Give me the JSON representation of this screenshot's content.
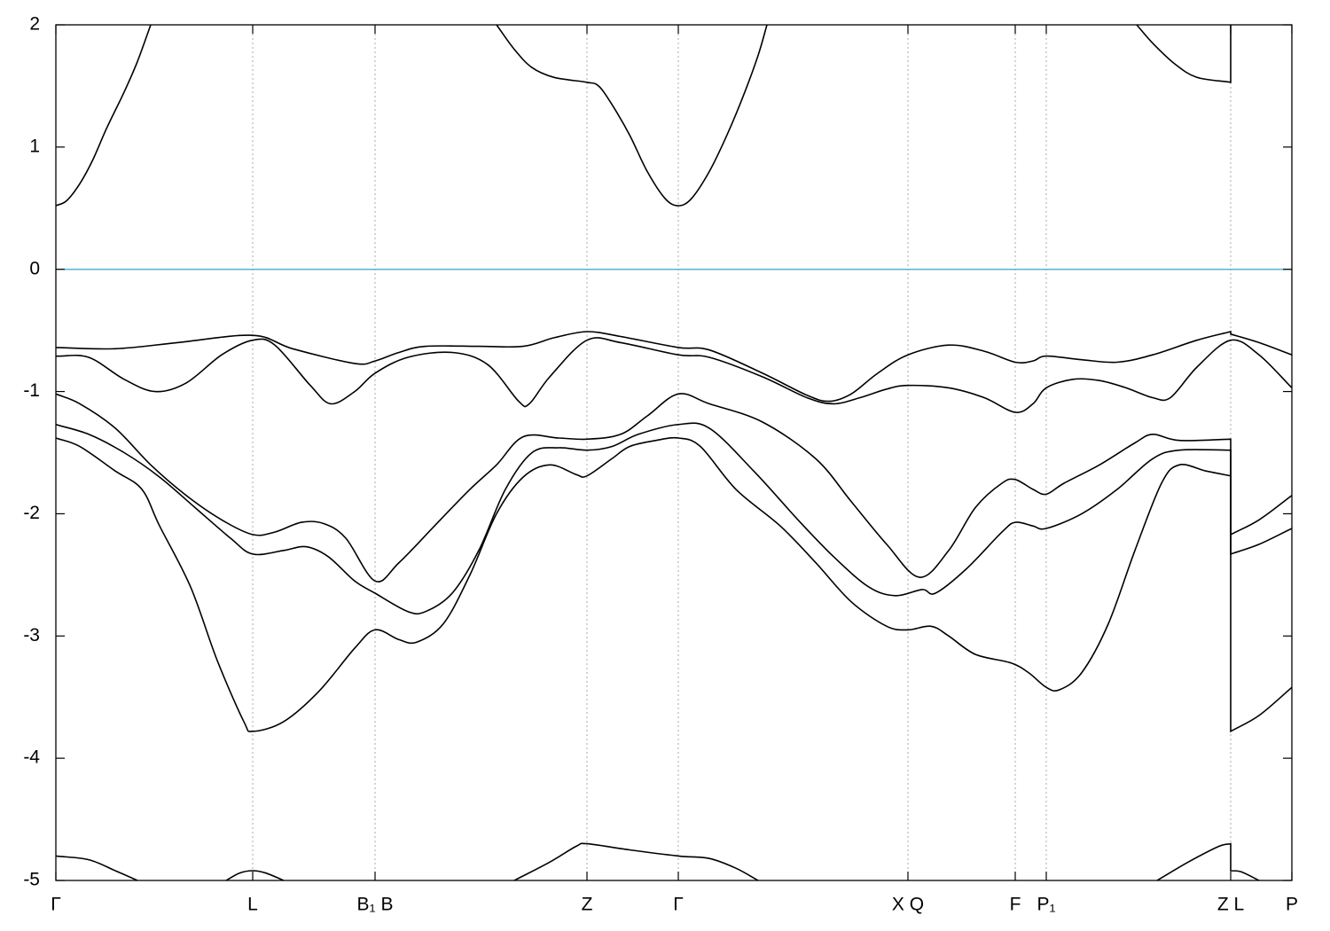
{
  "chart_data": {
    "type": "line",
    "xlim": [
      0,
      1394
    ],
    "ylim": [
      -5,
      2
    ],
    "yticks": [
      2,
      1,
      0,
      -1,
      -2,
      -3,
      -4,
      -5
    ],
    "xticks": [
      {
        "value": 0,
        "label": "Γ"
      },
      {
        "value": 222,
        "label": "L"
      },
      {
        "value": 360,
        "label": "B₁ B"
      },
      {
        "value": 599,
        "label": "Z"
      },
      {
        "value": 702,
        "label": "Γ"
      },
      {
        "value": 961,
        "label": "X Q"
      },
      {
        "value": 1082,
        "label": "F"
      },
      {
        "value": 1117,
        "label": "P₁"
      },
      {
        "value": 1325,
        "label": "Z L"
      },
      {
        "value": 1394,
        "label": "P"
      }
    ],
    "xgrid": true,
    "hlines": [
      {
        "value": 0,
        "color": "#5ab4d0"
      }
    ],
    "series": [
      {
        "color": "#000000",
        "x": [
          0,
          12,
          27,
          42,
          57,
          77,
          92,
          107,
          300,
          497,
          517,
          537,
          562,
          599,
          612,
          627,
          647,
          667,
          687,
          702,
          717,
          737,
          757,
          777,
          792,
          802,
          1000,
          1219,
          1237,
          1262,
          1287,
          1325,
          1325
        ],
        "values": [
          0.52,
          0.56,
          0.7,
          0.9,
          1.15,
          1.45,
          1.7,
          2.0,
          null,
          2.0,
          1.8,
          1.65,
          1.57,
          1.53,
          1.5,
          1.35,
          1.1,
          0.8,
          0.58,
          0.52,
          0.58,
          0.8,
          1.1,
          1.45,
          1.75,
          2.0,
          null,
          2.0,
          1.85,
          1.68,
          1.57,
          1.53,
          2.0
        ]
      },
      {
        "color": "#000000",
        "x": [
          0,
          67,
          137,
          222,
          267,
          337,
          360,
          387,
          417,
          477,
          527,
          562,
          599,
          637,
          702,
          737,
          797,
          847,
          872,
          897,
          927,
          961,
          1007,
          1047,
          1082,
          1102,
          1117,
          1157,
          1197,
          1237,
          1287,
          1325,
          1325,
          1357,
          1394
        ],
        "values": [
          -0.64,
          -0.65,
          -0.6,
          -0.54,
          -0.65,
          -0.77,
          -0.75,
          -0.68,
          -0.63,
          -0.63,
          -0.63,
          -0.56,
          -0.51,
          -0.55,
          -0.64,
          -0.66,
          -0.85,
          -1.03,
          -1.08,
          -1.02,
          -0.85,
          -0.7,
          -0.62,
          -0.67,
          -0.76,
          -0.75,
          -0.71,
          -0.74,
          -0.76,
          -0.7,
          -0.58,
          -0.51,
          -0.53,
          -0.6,
          -0.7
        ]
      },
      {
        "color": "#000000",
        "x": [
          0,
          37,
          77,
          112,
          147,
          187,
          222,
          247,
          287,
          310,
          337,
          360,
          397,
          447,
          487,
          522,
          534,
          557,
          599,
          637,
          702,
          737,
          797,
          847,
          877,
          907,
          937,
          961,
          1007,
          1047,
          1082,
          1102,
          1117,
          1147,
          1177,
          1207,
          1237,
          1257,
          1287,
          1325,
          1357,
          1394
        ],
        "values": [
          -0.71,
          -0.72,
          -0.9,
          -1.0,
          -0.93,
          -0.7,
          -0.58,
          -0.62,
          -0.95,
          -1.1,
          -1.0,
          -0.85,
          -0.72,
          -0.68,
          -0.78,
          -1.08,
          -1.1,
          -0.88,
          -0.58,
          -0.6,
          -0.7,
          -0.72,
          -0.88,
          -1.05,
          -1.1,
          -1.05,
          -0.98,
          -0.95,
          -0.97,
          -1.05,
          -1.17,
          -1.1,
          -0.97,
          -0.9,
          -0.91,
          -0.97,
          -1.05,
          -1.05,
          -0.8,
          -0.58,
          -0.7,
          -0.97
        ]
      },
      {
        "color": "#000000",
        "x": [
          0,
          27,
          67,
          107,
          147,
          187,
          222,
          247,
          277,
          302,
          327,
          360,
          387,
          427,
          467,
          497,
          527,
          567,
          599,
          637,
          667,
          702,
          737,
          797,
          857,
          897,
          937,
          974,
          1007,
          1037,
          1067,
          1082,
          1102,
          1117,
          1137,
          1177,
          1217,
          1237,
          1267,
          1325,
          1325,
          1357,
          1394
        ],
        "values": [
          -1.02,
          -1.1,
          -1.3,
          -1.6,
          -1.85,
          -2.05,
          -2.17,
          -2.15,
          -2.07,
          -2.08,
          -2.2,
          -2.55,
          -2.4,
          -2.1,
          -1.8,
          -1.6,
          -1.37,
          -1.38,
          -1.39,
          -1.35,
          -1.2,
          -1.02,
          -1.1,
          -1.25,
          -1.55,
          -1.9,
          -2.25,
          -2.52,
          -2.3,
          -1.95,
          -1.75,
          -1.72,
          -1.8,
          -1.84,
          -1.75,
          -1.6,
          -1.42,
          -1.35,
          -1.4,
          -1.39,
          -2.17,
          -2.05,
          -1.85
        ]
      },
      {
        "color": "#000000",
        "x": [
          0,
          37,
          77,
          117,
          157,
          197,
          222,
          257,
          282,
          307,
          337,
          360,
          397,
          417,
          447,
          477,
          507,
          537,
          567,
          599,
          627,
          657,
          702,
          737,
          787,
          837,
          877,
          917,
          947,
          977,
          992,
          1027,
          1067,
          1082,
          1102,
          1117,
          1157,
          1197,
          1237,
          1267,
          1325,
          1325,
          1357,
          1394
        ],
        "values": [
          -1.27,
          -1.35,
          -1.5,
          -1.7,
          -1.95,
          -2.2,
          -2.33,
          -2.3,
          -2.27,
          -2.35,
          -2.55,
          -2.65,
          -2.8,
          -2.8,
          -2.65,
          -2.3,
          -1.8,
          -1.5,
          -1.46,
          -1.48,
          -1.45,
          -1.35,
          -1.27,
          -1.3,
          -1.65,
          -2.05,
          -2.35,
          -2.6,
          -2.67,
          -2.62,
          -2.65,
          -2.45,
          -2.15,
          -2.07,
          -2.1,
          -2.12,
          -2.0,
          -1.8,
          -1.55,
          -1.48,
          -1.48,
          -2.33,
          -2.25,
          -2.12
        ]
      },
      {
        "color": "#000000",
        "x": [
          0,
          27,
          67,
          97,
          117,
          152,
          182,
          212,
          222,
          257,
          297,
          337,
          360,
          387,
          407,
          437,
          467,
          497,
          527,
          557,
          587,
          599,
          627,
          647,
          677,
          702,
          727,
          767,
          817,
          857,
          897,
          937,
          961,
          987,
          1007,
          1037,
          1077,
          1097,
          1117,
          1132,
          1157,
          1187,
          1217,
          1247,
          1267,
          1297,
          1325,
          1325,
          1357,
          1394
        ],
        "values": [
          -1.38,
          -1.45,
          -1.65,
          -1.8,
          -2.1,
          -2.6,
          -3.2,
          -3.7,
          -3.78,
          -3.7,
          -3.45,
          -3.1,
          -2.95,
          -3.03,
          -3.05,
          -2.9,
          -2.5,
          -2.0,
          -1.7,
          -1.6,
          -1.68,
          -1.69,
          -1.55,
          -1.45,
          -1.4,
          -1.38,
          -1.45,
          -1.8,
          -2.1,
          -2.4,
          -2.72,
          -2.92,
          -2.95,
          -2.92,
          -3.0,
          -3.15,
          -3.22,
          -3.3,
          -3.42,
          -3.44,
          -3.3,
          -2.9,
          -2.3,
          -1.75,
          -1.6,
          -1.65,
          -1.69,
          -3.78,
          -3.65,
          -3.42
        ]
      },
      {
        "color": "#000000",
        "x": [
          0,
          37,
          67,
          92,
          237,
          517,
          557,
          587,
          599,
          647,
          702,
          737,
          767,
          792,
          937,
          1242,
          1277,
          1312,
          1325,
          1325,
          1337,
          1357
        ],
        "values": [
          -4.8,
          -4.83,
          -4.92,
          -5.0,
          null,
          -5.0,
          -4.85,
          -4.72,
          -4.7,
          -4.75,
          -4.8,
          -4.82,
          -4.9,
          -5.0,
          null,
          -5.0,
          -4.85,
          -4.72,
          -4.7,
          -4.92,
          -4.93,
          -5.0
        ]
      },
      {
        "color": "#000000",
        "x": [
          192,
          207,
          222,
          237,
          257
        ],
        "values": [
          -5.0,
          -4.94,
          -4.92,
          -4.94,
          -5.0
        ]
      }
    ]
  }
}
